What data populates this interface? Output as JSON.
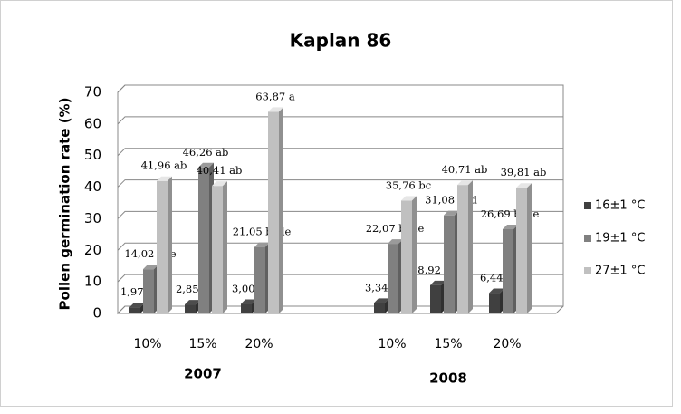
{
  "chart_data": {
    "type": "bar3d",
    "title": "Kaplan 86",
    "y_label": "Pollen germination rate (%)",
    "categories": [
      "10%",
      "15%",
      "20%",
      "10%",
      "15%",
      "20%"
    ],
    "groups": [
      "2007",
      "2008"
    ],
    "series": [
      {
        "name": "16±1 °C",
        "color": "#404040",
        "values": [
          1.97,
          2.85,
          3.0,
          3.34,
          8.92,
          6.44
        ],
        "value_labels": [
          "1,97 e",
          "2,85 e",
          "3,00 e",
          "3,34 e",
          "8,92 de",
          "6,44 e"
        ]
      },
      {
        "name": "19±1 °C",
        "color": "#808080",
        "values": [
          14.02,
          46.26,
          21.05,
          22.07,
          31.08,
          26.69
        ],
        "value_labels": [
          "14,02 cde",
          "46,26 ab",
          "21,05 bcde",
          "22,07 bcde",
          "31,08 bcd",
          "26,69 bcde"
        ]
      },
      {
        "name": "27±1 °C",
        "color": "#c0c0c0",
        "values": [
          41.96,
          40.41,
          63.87,
          35.76,
          40.71,
          39.81
        ],
        "value_labels": [
          "41,96 ab",
          "40,41 ab",
          "63,87 a",
          "35,76 bc",
          "40,71 ab",
          "39,81 ab"
        ]
      }
    ],
    "ylim": [
      0,
      70
    ],
    "yticks": [
      0,
      10,
      20,
      30,
      40,
      50,
      60,
      70
    ],
    "grid": true,
    "legend": "right"
  }
}
